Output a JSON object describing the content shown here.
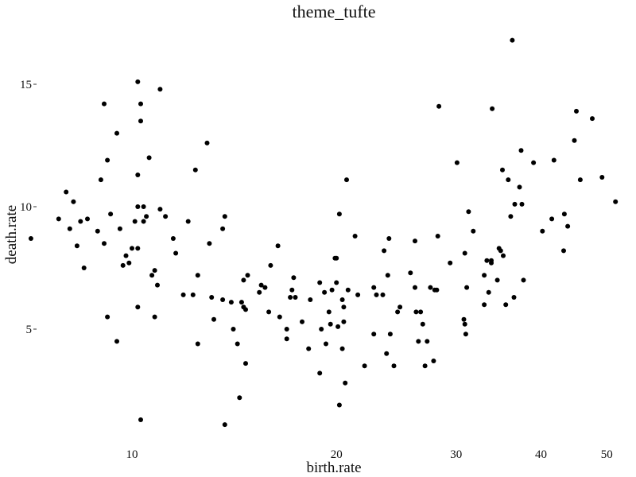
{
  "chart_data": {
    "type": "scatter",
    "title": "theme_tufte",
    "xlabel": "birth.rate",
    "ylabel": "death.rate",
    "x_scale": "log",
    "xlim": [
      7,
      50
    ],
    "ylim": [
      1,
      17
    ],
    "x_ticks": [
      10,
      20,
      30,
      40,
      50
    ],
    "y_ticks": [
      5,
      10,
      15
    ],
    "grid": false,
    "point_color": "#000000",
    "points": [
      [
        7.1,
        8.7
      ],
      [
        8.0,
        10.6
      ],
      [
        8.2,
        10.2
      ],
      [
        8.3,
        8.4
      ],
      [
        8.4,
        9.4
      ],
      [
        8.5,
        7.5
      ],
      [
        8.6,
        9.5
      ],
      [
        7.8,
        9.5
      ],
      [
        8.1,
        9.1
      ],
      [
        8.9,
        9.0
      ],
      [
        9.0,
        11.1
      ],
      [
        9.1,
        14.2
      ],
      [
        9.1,
        8.5
      ],
      [
        9.2,
        5.5
      ],
      [
        9.3,
        9.7
      ],
      [
        9.2,
        11.9
      ],
      [
        9.5,
        13.0
      ],
      [
        9.6,
        9.1
      ],
      [
        9.5,
        4.5
      ],
      [
        9.8,
        8.0
      ],
      [
        9.7,
        7.6
      ],
      [
        9.9,
        7.7
      ],
      [
        10.0,
        8.3
      ],
      [
        10.2,
        15.1
      ],
      [
        10.3,
        14.2
      ],
      [
        10.3,
        13.5
      ],
      [
        10.2,
        11.3
      ],
      [
        10.2,
        10.0
      ],
      [
        10.4,
        10.0
      ],
      [
        10.1,
        9.4
      ],
      [
        10.2,
        8.3
      ],
      [
        10.4,
        9.4
      ],
      [
        10.6,
        12.0
      ],
      [
        10.5,
        9.6
      ],
      [
        10.8,
        7.4
      ],
      [
        10.7,
        7.2
      ],
      [
        10.8,
        5.5
      ],
      [
        10.9,
        6.8
      ],
      [
        10.2,
        5.9
      ],
      [
        10.3,
        1.3
      ],
      [
        11.0,
        9.9
      ],
      [
        11.2,
        9.6
      ],
      [
        11.0,
        14.8
      ],
      [
        11.5,
        8.7
      ],
      [
        11.6,
        8.1
      ],
      [
        11.9,
        6.4
      ],
      [
        12.1,
        9.4
      ],
      [
        12.3,
        6.4
      ],
      [
        12.5,
        7.2
      ],
      [
        12.4,
        11.5
      ],
      [
        12.5,
        4.4
      ],
      [
        12.9,
        12.6
      ],
      [
        13.0,
        8.5
      ],
      [
        13.1,
        6.3
      ],
      [
        13.2,
        5.4
      ],
      [
        13.7,
        9.6
      ],
      [
        13.6,
        9.1
      ],
      [
        13.6,
        6.2
      ],
      [
        14.0,
        6.1
      ],
      [
        14.1,
        5.0
      ],
      [
        14.3,
        4.4
      ],
      [
        14.4,
        2.2
      ],
      [
        14.5,
        6.1
      ],
      [
        14.6,
        5.9
      ],
      [
        14.7,
        5.8
      ],
      [
        14.7,
        3.6
      ],
      [
        14.8,
        7.2
      ],
      [
        13.7,
        1.1
      ],
      [
        14.6,
        7.0
      ],
      [
        15.4,
        6.5
      ],
      [
        15.5,
        6.8
      ],
      [
        15.7,
        6.7
      ],
      [
        16.0,
        7.6
      ],
      [
        15.9,
        5.7
      ],
      [
        16.4,
        8.4
      ],
      [
        16.5,
        5.5
      ],
      [
        16.9,
        5.0
      ],
      [
        16.9,
        4.6
      ],
      [
        17.1,
        6.3
      ],
      [
        17.2,
        6.6
      ],
      [
        17.3,
        7.1
      ],
      [
        17.4,
        6.3
      ],
      [
        17.8,
        5.3
      ],
      [
        18.3,
        6.2
      ],
      [
        18.2,
        4.2
      ],
      [
        18.9,
        6.9
      ],
      [
        19.0,
        5.0
      ],
      [
        18.9,
        3.2
      ],
      [
        19.2,
        6.5
      ],
      [
        19.3,
        4.4
      ],
      [
        19.5,
        5.7
      ],
      [
        19.9,
        7.9
      ],
      [
        19.6,
        5.2
      ],
      [
        19.7,
        6.6
      ],
      [
        20.0,
        6.9
      ],
      [
        20.0,
        7.9
      ],
      [
        20.2,
        9.7
      ],
      [
        20.1,
        5.1
      ],
      [
        20.4,
        6.2
      ],
      [
        20.5,
        5.9
      ],
      [
        20.4,
        4.2
      ],
      [
        20.5,
        5.3
      ],
      [
        20.7,
        11.1
      ],
      [
        20.8,
        6.6
      ],
      [
        20.6,
        2.8
      ],
      [
        20.2,
        1.9
      ],
      [
        21.3,
        8.8
      ],
      [
        21.5,
        6.4
      ],
      [
        22.0,
        3.5
      ],
      [
        22.7,
        6.7
      ],
      [
        22.9,
        6.4
      ],
      [
        22.7,
        4.8
      ],
      [
        23.4,
        6.4
      ],
      [
        23.5,
        8.2
      ],
      [
        23.7,
        4.0
      ],
      [
        23.9,
        8.7
      ],
      [
        23.8,
        7.2
      ],
      [
        24.0,
        4.8
      ],
      [
        24.3,
        3.5
      ],
      [
        24.6,
        5.7
      ],
      [
        24.8,
        5.9
      ],
      [
        25.7,
        7.3
      ],
      [
        26.1,
        8.6
      ],
      [
        26.1,
        6.7
      ],
      [
        26.2,
        5.7
      ],
      [
        26.4,
        4.5
      ],
      [
        26.6,
        5.7
      ],
      [
        26.8,
        5.2
      ],
      [
        27.0,
        3.5
      ],
      [
        27.2,
        4.5
      ],
      [
        27.5,
        6.7
      ],
      [
        27.8,
        3.7
      ],
      [
        27.9,
        6.6
      ],
      [
        28.1,
        6.6
      ],
      [
        28.2,
        8.8
      ],
      [
        28.3,
        14.1
      ],
      [
        29.4,
        7.7
      ],
      [
        30.1,
        11.8
      ],
      [
        30.8,
        5.4
      ],
      [
        30.9,
        5.2
      ],
      [
        30.9,
        8.1
      ],
      [
        31.1,
        6.7
      ],
      [
        31.0,
        4.8
      ],
      [
        31.3,
        9.8
      ],
      [
        31.8,
        9.0
      ],
      [
        33.0,
        7.2
      ],
      [
        33.0,
        6.0
      ],
      [
        33.3,
        7.8
      ],
      [
        33.8,
        7.7
      ],
      [
        33.8,
        7.8
      ],
      [
        33.5,
        6.5
      ],
      [
        33.9,
        14.0
      ],
      [
        34.5,
        7.0
      ],
      [
        34.7,
        8.3
      ],
      [
        34.9,
        8.2
      ],
      [
        35.1,
        11.5
      ],
      [
        35.2,
        8.0
      ],
      [
        35.5,
        6.0
      ],
      [
        35.8,
        11.1
      ],
      [
        36.1,
        9.6
      ],
      [
        36.5,
        6.3
      ],
      [
        36.6,
        10.1
      ],
      [
        36.3,
        16.8
      ],
      [
        37.2,
        10.8
      ],
      [
        37.4,
        12.3
      ],
      [
        37.5,
        10.1
      ],
      [
        37.7,
        7.0
      ],
      [
        39.0,
        11.8
      ],
      [
        40.2,
        9.0
      ],
      [
        41.5,
        9.5
      ],
      [
        41.8,
        11.9
      ],
      [
        43.2,
        8.2
      ],
      [
        43.3,
        9.7
      ],
      [
        43.8,
        9.2
      ],
      [
        44.8,
        12.7
      ],
      [
        45.1,
        13.9
      ],
      [
        45.7,
        11.1
      ],
      [
        47.6,
        13.6
      ],
      [
        49.2,
        11.2
      ],
      [
        51.5,
        10.2
      ]
    ]
  }
}
